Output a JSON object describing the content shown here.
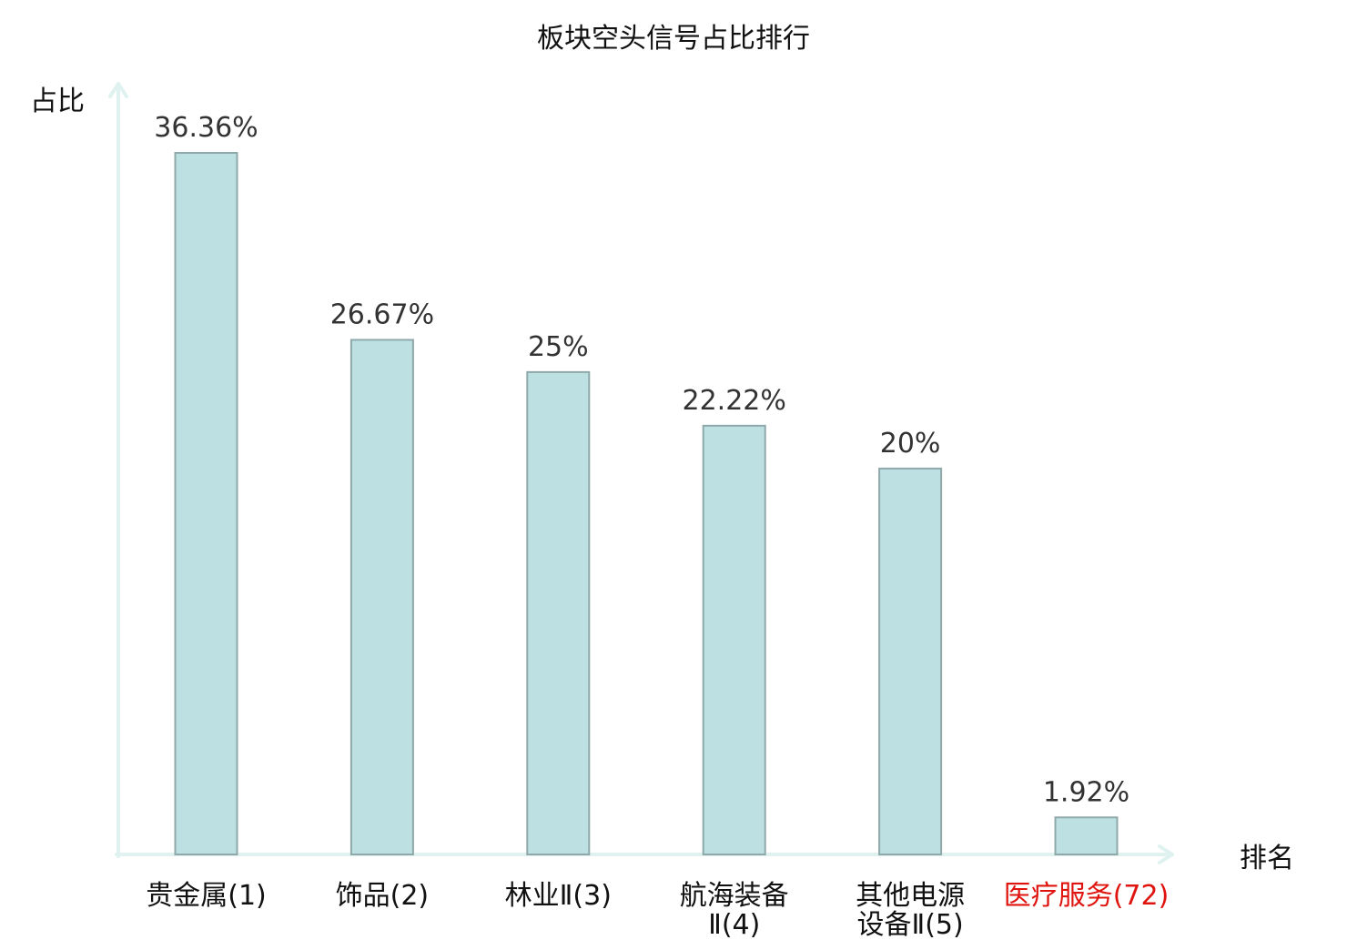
{
  "chart_data": {
    "type": "bar",
    "title": "板块空头信号占比排行",
    "ylabel": "占比",
    "xlabel": "排名",
    "categories": [
      [
        "贵金属(1)"
      ],
      [
        "饰品(2)"
      ],
      [
        "林业Ⅱ(3)"
      ],
      [
        "航海装备",
        "Ⅱ(4)"
      ],
      [
        "其他电源",
        "设备Ⅱ(5)"
      ],
      [
        "医疗服务(72)"
      ]
    ],
    "values": [
      36.36,
      26.67,
      25,
      22.22,
      20,
      1.92
    ],
    "value_labels": [
      "36.36%",
      "26.67%",
      "25%",
      "22.22%",
      "20%",
      "1.92%"
    ],
    "highlight_index": 5,
    "ylim": [
      0,
      40
    ],
    "grid": false,
    "colors": {
      "bar_fill": "#bde0e3",
      "bar_stroke": "#8fa8aa",
      "axis": "#dff2ef",
      "text": "#111111",
      "value_text": "#333333",
      "highlight_text": "#e0140f"
    }
  }
}
